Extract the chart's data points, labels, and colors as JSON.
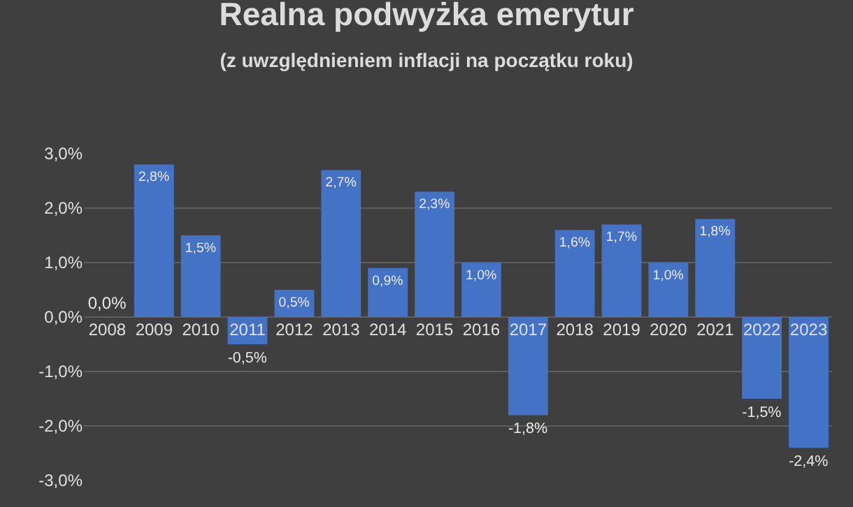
{
  "chart_data": {
    "type": "bar",
    "title": "Realna podwyżka emerytur",
    "subtitle": "(z uwzględnieniem inflacji na początku roku)",
    "categories": [
      "2008",
      "2009",
      "2010",
      "2011",
      "2012",
      "2013",
      "2014",
      "2015",
      "2016",
      "2017",
      "2018",
      "2019",
      "2020",
      "2021",
      "2022",
      "2023"
    ],
    "values": [
      0.0,
      2.8,
      1.5,
      -0.5,
      0.5,
      2.7,
      0.9,
      2.3,
      1.0,
      -1.8,
      1.6,
      1.7,
      1.0,
      1.8,
      -1.5,
      -2.4
    ],
    "value_labels": [
      "0,0%",
      "2,8%",
      "1,5%",
      "-0,5%",
      "0,5%",
      "2,7%",
      "0,9%",
      "2,3%",
      "1,0%",
      "-1,8%",
      "1,6%",
      "1,7%",
      "1,0%",
      "1,8%",
      "-1,5%",
      "-2,4%"
    ],
    "color": "#4472c4",
    "ylim": [
      -3,
      3
    ],
    "yticks": [
      {
        "value": -3,
        "label": "-3,0%"
      },
      {
        "value": -2,
        "label": "-2,0%"
      },
      {
        "value": -1,
        "label": "-1,0%"
      },
      {
        "value": 0,
        "label": "0,0%"
      },
      {
        "value": 1,
        "label": "1,0%"
      },
      {
        "value": 2,
        "label": "2,0%"
      },
      {
        "value": 3,
        "label": "3,0%"
      }
    ],
    "grid": "y",
    "legend": false
  }
}
